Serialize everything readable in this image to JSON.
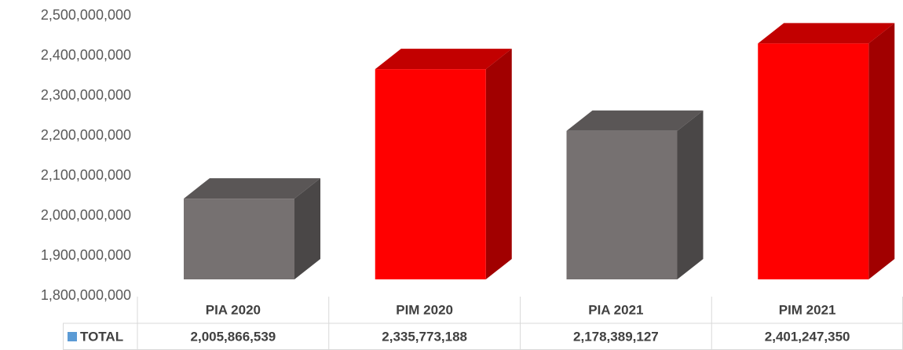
{
  "chart_data": {
    "type": "bar3d",
    "categories": [
      "PIA 2020",
      "PIM 2020",
      "PIA 2021",
      "PIM 2021"
    ],
    "series": [
      {
        "name": "TOTAL",
        "color": "#5b9bd5",
        "values": [
          2005866539,
          2335773188,
          2178389127,
          2401247350
        ],
        "value_labels": [
          "2,005,866,539",
          "2,335,773,188",
          "2,178,389,127",
          "2,401,247,350"
        ]
      }
    ],
    "colors": [
      "#767171",
      "#ff0000",
      "#767171",
      "#ff0000"
    ],
    "ylim": [
      1800000000,
      2500000000
    ],
    "yticks": [
      {
        "value": 1800000000,
        "label": "1,800,000,000"
      },
      {
        "value": 1900000000,
        "label": "1,900,000,000"
      },
      {
        "value": 2000000000,
        "label": "2,000,000,000"
      },
      {
        "value": 2100000000,
        "label": "2,100,000,000"
      },
      {
        "value": 2200000000,
        "label": "2,200,000,000"
      },
      {
        "value": 2300000000,
        "label": "2,300,000,000"
      },
      {
        "value": 2400000000,
        "label": "2,400,000,000"
      },
      {
        "value": 2500000000,
        "label": "2,500,000,000"
      }
    ],
    "data_table": true
  }
}
